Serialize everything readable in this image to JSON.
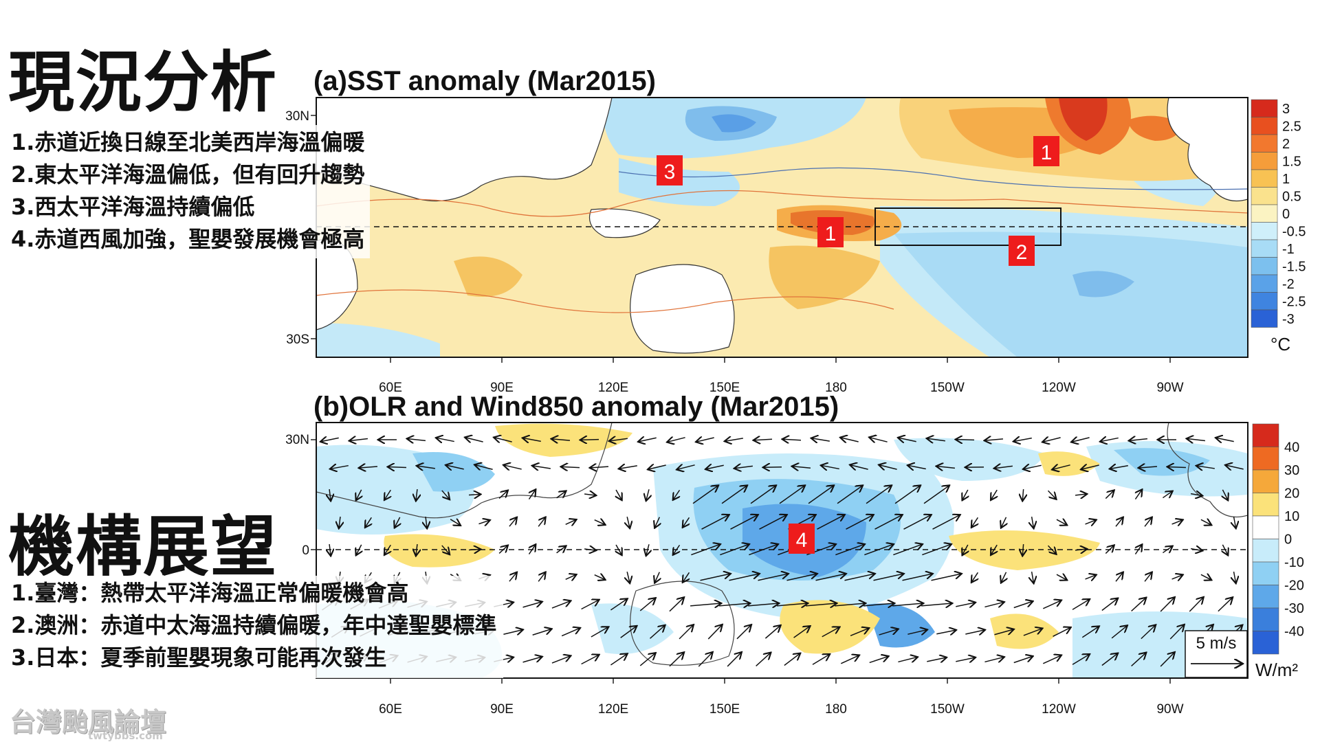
{
  "headings": {
    "analysis": "現況分析",
    "outlook": "機構展望"
  },
  "analysis_points": [
    "1.赤道近換日線至北美西岸海溫偏暖",
    "2.東太平洋海溫偏低，但有回升趨勢",
    "3.西太平洋海溫持續偏低",
    "4.赤道西風加強，聖嬰發展機會極高"
  ],
  "outlook_points": [
    "1.臺灣：熱帶太平洋海溫正常偏暖機會高",
    "2.澳洲：赤道中太海溫持續偏暖，年中達聖嬰標準",
    "3.日本：夏季前聖嬰現象可能再次發生"
  ],
  "watermark": {
    "main": "台灣颱風論壇",
    "sub": "twtybbs.com"
  },
  "panel_a": {
    "title": "(a)SST anomaly (Mar2015)",
    "lat_labels": [
      "30N",
      "30S"
    ],
    "lon_labels": [
      "60E",
      "90E",
      "120E",
      "150E",
      "180",
      "150W",
      "120W",
      "90W"
    ],
    "colorbar_labels": [
      "3",
      "2.5",
      "2",
      "1.5",
      "1",
      "0.5",
      "0",
      "-0.5",
      "-1",
      "-1.5",
      "-2",
      "-2.5",
      "-3"
    ],
    "colorbar_colors": [
      "#d62a1c",
      "#e8501f",
      "#f2782e",
      "#f59d3a",
      "#f8c253",
      "#fae28d",
      "#fbf3c2",
      "#cfeffa",
      "#a8dcf6",
      "#7cc0ee",
      "#5aa2e8",
      "#3f84e0",
      "#2a62d6"
    ],
    "unit": "°C",
    "markers": [
      "1",
      "3",
      "1",
      "2"
    ]
  },
  "panel_b": {
    "title": "(b)OLR and Wind850 anomaly (Mar2015)",
    "lat_labels": [
      "30N",
      "0"
    ],
    "lon_labels": [
      "60E",
      "90E",
      "120E",
      "150E",
      "180",
      "150W",
      "120W",
      "90W"
    ],
    "colorbar_labels": [
      "40",
      "30",
      "20",
      "10",
      "0",
      "-10",
      "-20",
      "-30",
      "-40"
    ],
    "colorbar_colors": [
      "#d62a1c",
      "#ee6a22",
      "#f5a83a",
      "#fbe27a",
      "#ffffff",
      "#c8ecfa",
      "#8fd0f3",
      "#5ea8e9",
      "#3a7fdc",
      "#2a62d6"
    ],
    "unit": "W/m²",
    "ref_vector": "5 m/s",
    "markers": [
      "4"
    ]
  }
}
